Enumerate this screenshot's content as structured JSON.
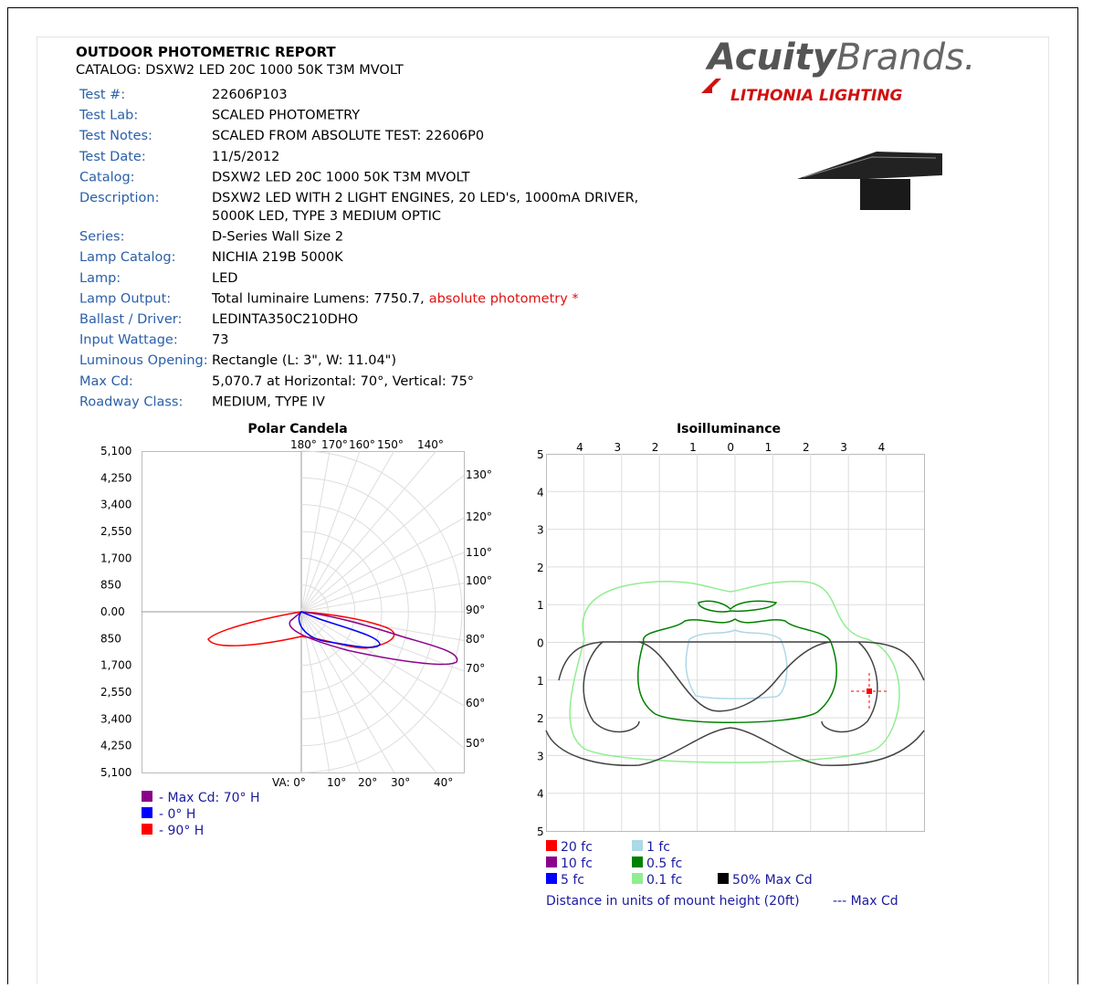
{
  "header": {
    "title": "OUTDOOR PHOTOMETRIC REPORT",
    "catalog": "CATALOG: DSXW2 LED 20C 1000 50K T3M MVOLT"
  },
  "logo": {
    "brand_bold": "Acuity",
    "brand_light": "Brands.",
    "sub": "LITHONIA LIGHTING"
  },
  "details": [
    {
      "label": "Test #:",
      "value": "22606P103"
    },
    {
      "label": "Test Lab:",
      "value": "SCALED PHOTOMETRY"
    },
    {
      "label": "Test Notes:",
      "value": "SCALED FROM ABSOLUTE TEST: 22606P0"
    },
    {
      "label": "Test Date:",
      "value": "11/5/2012"
    },
    {
      "label": "Catalog:",
      "value": "DSXW2 LED 20C 1000 50K T3M MVOLT"
    },
    {
      "label": "Description:",
      "value": "DSXW2 LED WITH 2 LIGHT ENGINES, 20 LED's, 1000mA DRIVER,",
      "value2": "5000K LED, TYPE 3 MEDIUM OPTIC"
    },
    {
      "label": "Series:",
      "value": "D-Series Wall Size 2"
    },
    {
      "label": "Lamp Catalog:",
      "value": "NICHIA 219B 5000K"
    },
    {
      "label": "Lamp:",
      "value": "LED"
    },
    {
      "label": "Lamp Output:",
      "value": "Total luminaire Lumens: 7750.7,",
      "note": "absolute photometry *"
    },
    {
      "label": "Ballast / Driver:",
      "value": "LEDINTA350C210DHO"
    },
    {
      "label": "Input Wattage:",
      "value": "73"
    },
    {
      "label": "Luminous Opening:",
      "value": "Rectangle (L: 3\", W: 11.04\")"
    },
    {
      "label": "Max Cd:",
      "value": "5,070.7 at Horizontal: 70°, Vertical: 75°"
    },
    {
      "label": "Roadway Class:",
      "value": "MEDIUM, TYPE IV"
    }
  ],
  "polar": {
    "title": "Polar Candela",
    "left_ticks": [
      "5,100",
      "4,250",
      "3,400",
      "2,550",
      "1,700",
      "850",
      "0.00",
      "850",
      "1,700",
      "2,550",
      "3,400",
      "4,250",
      "5,100"
    ],
    "top_angles": [
      "180°",
      "170°",
      "160°",
      "150°",
      "140°"
    ],
    "right_angles": [
      "130°",
      "120°",
      "110°",
      "100°",
      "90°",
      "80°",
      "70°",
      "60°",
      "50°"
    ],
    "bottom_angles": [
      "VA: 0°",
      "10°",
      "20°",
      "30°",
      "40°"
    ],
    "legend": [
      {
        "label": "- Max Cd: 70° H",
        "color": "#8b008b"
      },
      {
        "label": "- 0° H",
        "color": "#0000ff"
      },
      {
        "label": "- 90° H",
        "color": "#ff0000"
      }
    ]
  },
  "iso": {
    "title": "Isoilluminance",
    "top_ticks": [
      "4",
      "3",
      "2",
      "1",
      "0",
      "1",
      "2",
      "3",
      "4"
    ],
    "left_ticks": [
      "5",
      "4",
      "3",
      "2",
      "1",
      "0",
      "1",
      "2",
      "3",
      "4",
      "5"
    ],
    "legend": [
      {
        "label": "20 fc",
        "color": "#ff0000"
      },
      {
        "label": "1 fc",
        "color": "#add8e6"
      },
      {
        "label": "10 fc",
        "color": "#8b008b"
      },
      {
        "label": "0.5 fc",
        "color": "#008000"
      },
      {
        "label": "5 fc",
        "color": "#0000ff"
      },
      {
        "label": "0.1 fc",
        "color": "#90ee90"
      },
      {
        "label": "50% Max Cd",
        "color": "#000000"
      }
    ],
    "note": "Distance in units of mount height (20ft)",
    "max_cd": "--- Max Cd"
  }
}
